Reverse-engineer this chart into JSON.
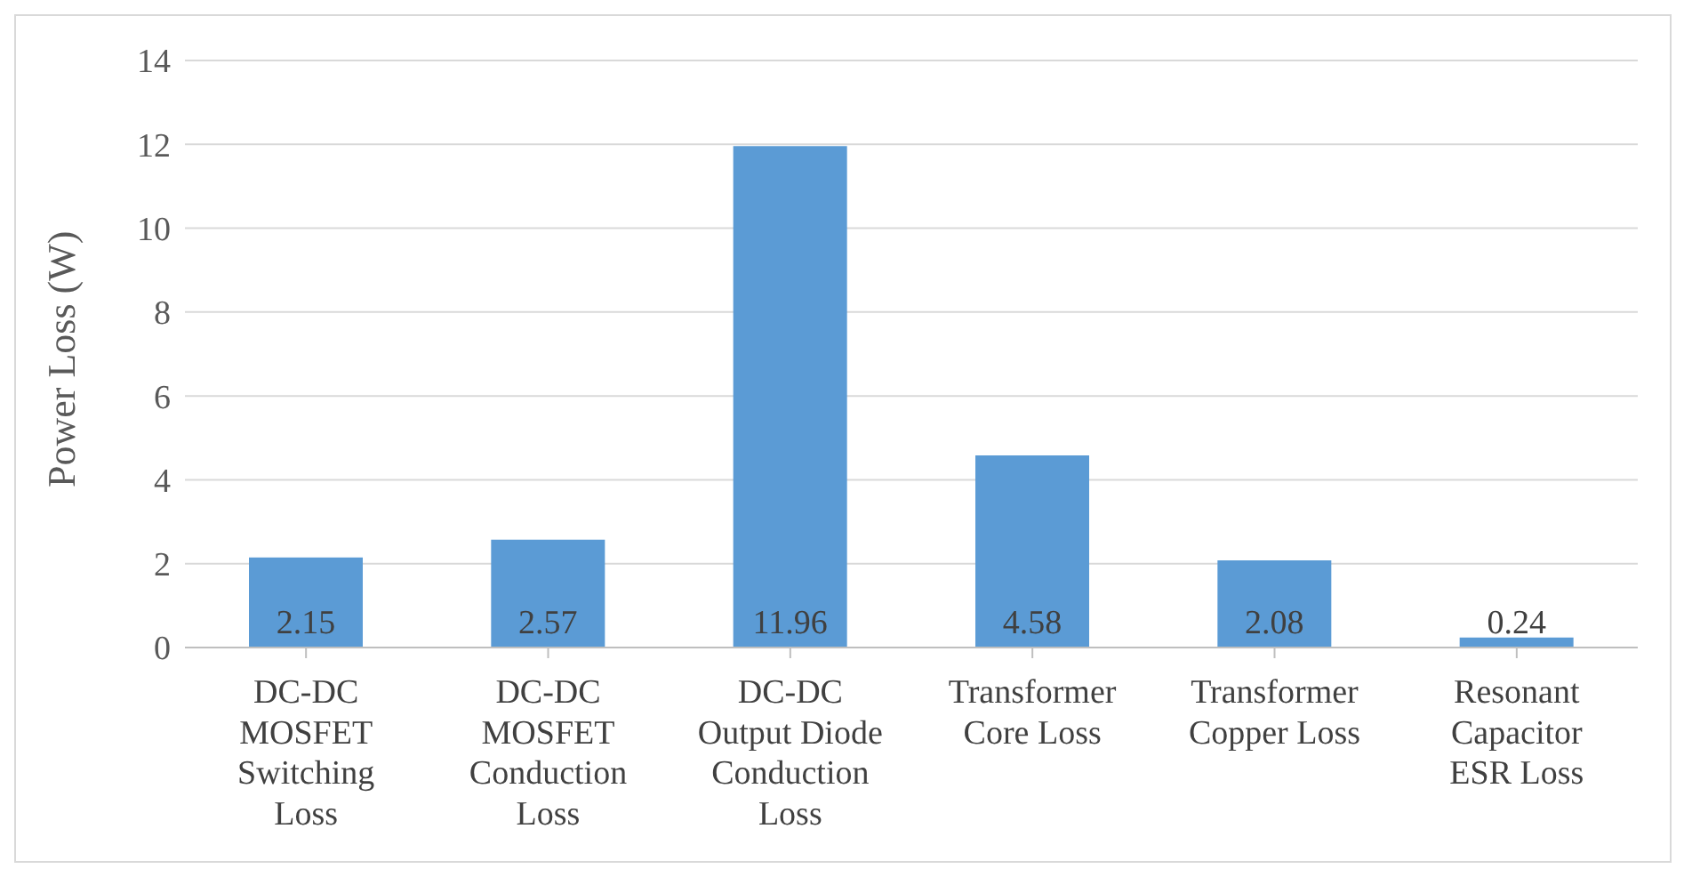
{
  "chart_data": {
    "type": "bar",
    "ylabel": "Power Loss (W)",
    "categories": [
      "DC-DC MOSFET Switching Loss",
      "DC-DC MOSFET Conduction Loss",
      "DC-DC Output Diode Conduction Loss",
      "Transformer Core Loss",
      "Transformer Copper Loss",
      "Resonant Capacitor ESR Loss"
    ],
    "values": [
      2.15,
      2.57,
      11.96,
      4.58,
      2.08,
      0.24
    ],
    "color": "#5b9bd5",
    "ylim": [
      0,
      14
    ],
    "yticks": [
      0,
      2,
      4,
      6,
      8,
      10,
      12,
      14
    ],
    "grid": "y",
    "data_labels": true
  }
}
